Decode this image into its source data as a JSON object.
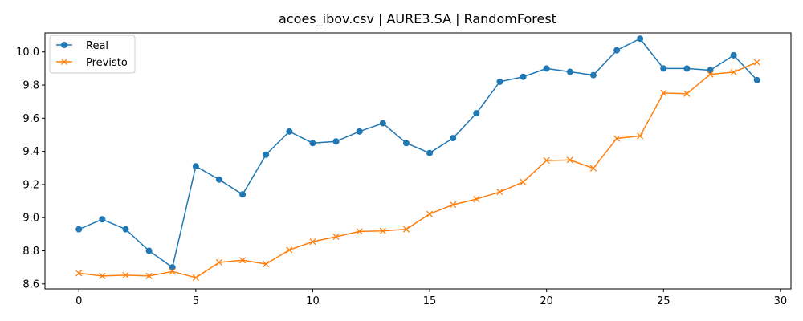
{
  "chart_data": {
    "type": "line",
    "title": "acoes_ibov.csv | AURE3.SA | RandomForest",
    "xlabel": "",
    "ylabel": "",
    "x": [
      0,
      1,
      2,
      3,
      4,
      5,
      6,
      7,
      8,
      9,
      10,
      11,
      12,
      13,
      14,
      15,
      16,
      17,
      18,
      19,
      20,
      21,
      22,
      23,
      24,
      25,
      26,
      27,
      28,
      29
    ],
    "xlim": [
      -1.45,
      30.45
    ],
    "ylim": [
      8.57,
      10.115
    ],
    "xticks": [
      0,
      5,
      10,
      15,
      20,
      25,
      30
    ],
    "xtick_labels": [
      "0",
      "5",
      "10",
      "15",
      "20",
      "25",
      "30"
    ],
    "yticks": [
      8.6,
      8.8,
      9.0,
      9.2,
      9.4,
      9.6,
      9.8,
      10.0
    ],
    "ytick_labels": [
      "8.6",
      "8.8",
      "9.0",
      "9.2",
      "9.4",
      "9.6",
      "9.8",
      "10.0"
    ],
    "grid": false,
    "legend": {
      "placement": "upper-left"
    },
    "series": [
      {
        "name": "Real",
        "color": "#1f77b4",
        "marker": "circle",
        "values": [
          8.93,
          8.99,
          8.93,
          8.8,
          8.7,
          9.31,
          9.23,
          9.14,
          9.38,
          9.52,
          9.45,
          9.46,
          9.52,
          9.57,
          9.45,
          9.39,
          9.48,
          9.63,
          9.82,
          9.85,
          9.9,
          9.88,
          9.86,
          10.01,
          10.08,
          9.9,
          9.9,
          9.89,
          9.98,
          9.83
        ]
      },
      {
        "name": "Previsto",
        "color": "#ff7f0e",
        "marker": "x",
        "values": [
          8.665,
          8.648,
          8.653,
          8.648,
          8.675,
          8.638,
          8.73,
          8.743,
          8.72,
          8.805,
          8.855,
          8.885,
          8.917,
          8.92,
          8.93,
          9.022,
          9.078,
          9.112,
          9.155,
          9.215,
          9.345,
          9.348,
          9.298,
          9.478,
          9.493,
          9.752,
          9.748,
          9.865,
          9.878,
          9.938
        ]
      }
    ]
  }
}
